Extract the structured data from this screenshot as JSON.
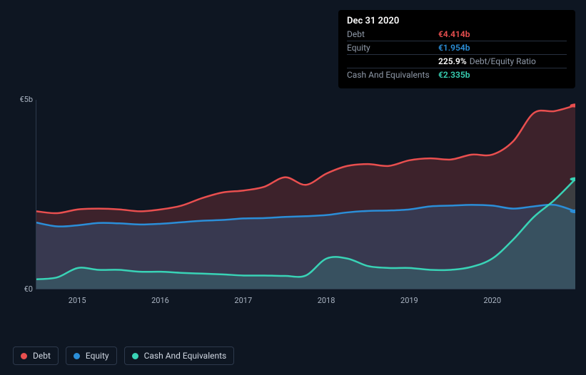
{
  "chart": {
    "type": "area",
    "background_color": "#0e1622",
    "grid_color": "#2d394c",
    "label_color": "#a9b3c1",
    "label_fontsize": 11,
    "x_start": 2014.5,
    "x_end": 2021.0,
    "x_ticks": [
      2015,
      2016,
      2017,
      2018,
      2019,
      2020
    ],
    "x_tick_labels": [
      "2015",
      "2016",
      "2017",
      "2018",
      "2019",
      "2020"
    ],
    "y_min": 0,
    "y_max": 5,
    "y_ticks": [
      0,
      5
    ],
    "y_tick_labels": [
      "€0",
      "€5b"
    ],
    "series": [
      {
        "key": "debt",
        "label": "Debt",
        "color": "#e94f4f",
        "fill_color": "rgba(233,79,79,0.22)",
        "line_width": 2.5,
        "points": [
          [
            2014.5,
            2.05
          ],
          [
            2014.75,
            2.0
          ],
          [
            2015.0,
            2.1
          ],
          [
            2015.25,
            2.12
          ],
          [
            2015.5,
            2.1
          ],
          [
            2015.75,
            2.05
          ],
          [
            2016.0,
            2.1
          ],
          [
            2016.25,
            2.2
          ],
          [
            2016.5,
            2.4
          ],
          [
            2016.75,
            2.55
          ],
          [
            2017.0,
            2.6
          ],
          [
            2017.25,
            2.7
          ],
          [
            2017.5,
            2.95
          ],
          [
            2017.75,
            2.75
          ],
          [
            2018.0,
            3.05
          ],
          [
            2018.25,
            3.25
          ],
          [
            2018.5,
            3.3
          ],
          [
            2018.75,
            3.25
          ],
          [
            2019.0,
            3.4
          ],
          [
            2019.25,
            3.45
          ],
          [
            2019.5,
            3.42
          ],
          [
            2019.75,
            3.55
          ],
          [
            2020.0,
            3.55
          ],
          [
            2020.25,
            3.9
          ],
          [
            2020.5,
            4.65
          ],
          [
            2020.75,
            4.7
          ],
          [
            2021.0,
            4.85
          ]
        ],
        "end_marker": true
      },
      {
        "key": "equity",
        "label": "Equity",
        "color": "#2b8ed8",
        "fill_color": "rgba(43,142,216,0.22)",
        "line_width": 2.5,
        "points": [
          [
            2014.5,
            1.75
          ],
          [
            2014.75,
            1.65
          ],
          [
            2015.0,
            1.68
          ],
          [
            2015.25,
            1.74
          ],
          [
            2015.5,
            1.73
          ],
          [
            2015.75,
            1.7
          ],
          [
            2016.0,
            1.72
          ],
          [
            2016.25,
            1.76
          ],
          [
            2016.5,
            1.8
          ],
          [
            2016.75,
            1.82
          ],
          [
            2017.0,
            1.86
          ],
          [
            2017.25,
            1.87
          ],
          [
            2017.5,
            1.9
          ],
          [
            2017.75,
            1.92
          ],
          [
            2018.0,
            1.95
          ],
          [
            2018.25,
            2.02
          ],
          [
            2018.5,
            2.06
          ],
          [
            2018.75,
            2.07
          ],
          [
            2019.0,
            2.1
          ],
          [
            2019.25,
            2.18
          ],
          [
            2019.5,
            2.2
          ],
          [
            2019.75,
            2.22
          ],
          [
            2020.0,
            2.2
          ],
          [
            2020.25,
            2.12
          ],
          [
            2020.5,
            2.18
          ],
          [
            2020.75,
            2.22
          ],
          [
            2021.0,
            2.05
          ]
        ],
        "end_marker": true
      },
      {
        "key": "cash",
        "label": "Cash And Equivalents",
        "color": "#39d3b6",
        "fill_color": "rgba(57,211,182,0.16)",
        "line_width": 2.5,
        "points": [
          [
            2014.5,
            0.25
          ],
          [
            2014.75,
            0.3
          ],
          [
            2015.0,
            0.55
          ],
          [
            2015.25,
            0.5
          ],
          [
            2015.5,
            0.5
          ],
          [
            2015.75,
            0.45
          ],
          [
            2016.0,
            0.45
          ],
          [
            2016.25,
            0.42
          ],
          [
            2016.5,
            0.4
          ],
          [
            2016.75,
            0.38
          ],
          [
            2017.0,
            0.35
          ],
          [
            2017.25,
            0.35
          ],
          [
            2017.5,
            0.34
          ],
          [
            2017.75,
            0.35
          ],
          [
            2018.0,
            0.8
          ],
          [
            2018.25,
            0.8
          ],
          [
            2018.5,
            0.6
          ],
          [
            2018.75,
            0.55
          ],
          [
            2019.0,
            0.55
          ],
          [
            2019.25,
            0.5
          ],
          [
            2019.5,
            0.5
          ],
          [
            2019.75,
            0.58
          ],
          [
            2020.0,
            0.8
          ],
          [
            2020.25,
            1.3
          ],
          [
            2020.5,
            1.9
          ],
          [
            2020.75,
            2.35
          ],
          [
            2021.0,
            2.9
          ]
        ],
        "end_marker": true
      }
    ]
  },
  "tooltip": {
    "date": "Dec 31 2020",
    "rows": [
      {
        "label": "Debt",
        "value": "€4.414b",
        "color": "#e94f4f"
      },
      {
        "label": "Equity",
        "value": "€1.954b",
        "color": "#2b8ed8"
      },
      {
        "label": "",
        "ratio": "225.9%",
        "ratio_label": "Debt/Equity Ratio"
      },
      {
        "label": "Cash And Equivalents",
        "value": "€2.335b",
        "color": "#39d3b6"
      }
    ]
  },
  "legend": {
    "border_color": "#2d394c",
    "items": [
      {
        "label": "Debt",
        "color": "#e94f4f"
      },
      {
        "label": "Equity",
        "color": "#2b8ed8"
      },
      {
        "label": "Cash And Equivalents",
        "color": "#39d3b6"
      }
    ]
  }
}
